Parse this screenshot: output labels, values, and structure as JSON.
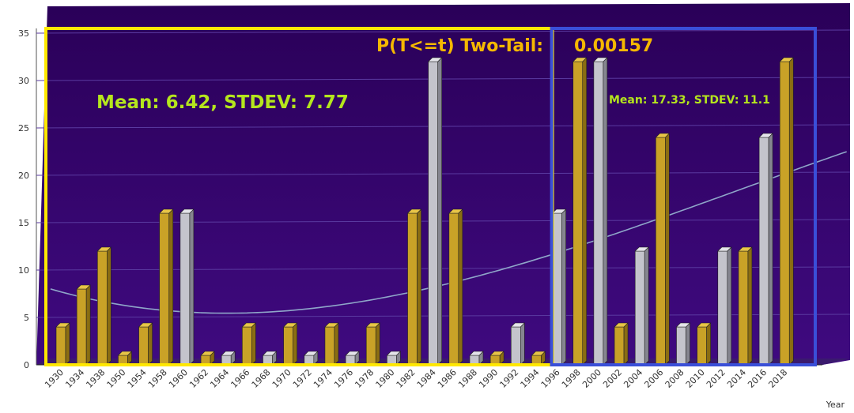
{
  "chart_data": {
    "type": "bar",
    "xlabel": "Year",
    "ylabel": "",
    "ylim": [
      0,
      35
    ],
    "yticks": [
      0,
      5,
      10,
      15,
      20,
      25,
      30,
      35
    ],
    "grid": true,
    "categories": [
      "1930",
      "1934",
      "1938",
      "1950",
      "1954",
      "1958",
      "1960",
      "1962",
      "1964",
      "1966",
      "1968",
      "1970",
      "1972",
      "1974",
      "1976",
      "1978",
      "1980",
      "1982",
      "1984",
      "1986",
      "1988",
      "1990",
      "1992",
      "1994",
      "1996",
      "1998",
      "2000",
      "2002",
      "2004",
      "2006",
      "2008",
      "2010",
      "2012",
      "2014",
      "2016",
      "2018"
    ],
    "values": [
      4,
      8,
      12,
      1,
      4,
      16,
      16,
      1,
      1,
      4,
      1,
      4,
      1,
      4,
      1,
      4,
      1,
      16,
      32,
      16,
      1,
      1,
      4,
      1,
      16,
      32,
      32,
      4,
      12,
      24,
      4,
      4,
      12,
      12,
      24,
      32
    ],
    "bar_colors": [
      "gold",
      "gold",
      "gold",
      "gold",
      "gold",
      "gold",
      "silver",
      "gold",
      "silver",
      "gold",
      "silver",
      "gold",
      "silver",
      "gold",
      "silver",
      "gold",
      "silver",
      "gold",
      "silver",
      "gold",
      "silver",
      "gold",
      "silver",
      "gold",
      "silver",
      "gold",
      "silver",
      "gold",
      "silver",
      "gold",
      "silver",
      "gold",
      "silver",
      "gold",
      "silver",
      "gold"
    ],
    "trendline": {
      "type": "polynomial",
      "color": "#8fa6c9"
    },
    "annotations": {
      "left_stats": "Mean: 6.42, STDEV: 7.77",
      "right_stats": "Mean: 17.33, STDEV: 11.1",
      "p_label": "P(T<=t) Two-Tail:",
      "p_value": "0.00157"
    },
    "groups": [
      {
        "range": [
          "1930",
          "1996"
        ],
        "border_color": "#ffe800"
      },
      {
        "range": [
          "1996",
          "2018"
        ],
        "border_color": "#3a4fd8"
      }
    ]
  },
  "colors": {
    "plot_bg": "#330066",
    "gold_bar": "#c9a227",
    "silver_bar": "#c4c4cc",
    "annotation_green": "#b5e61d",
    "annotation_gold": "#f5b800"
  }
}
